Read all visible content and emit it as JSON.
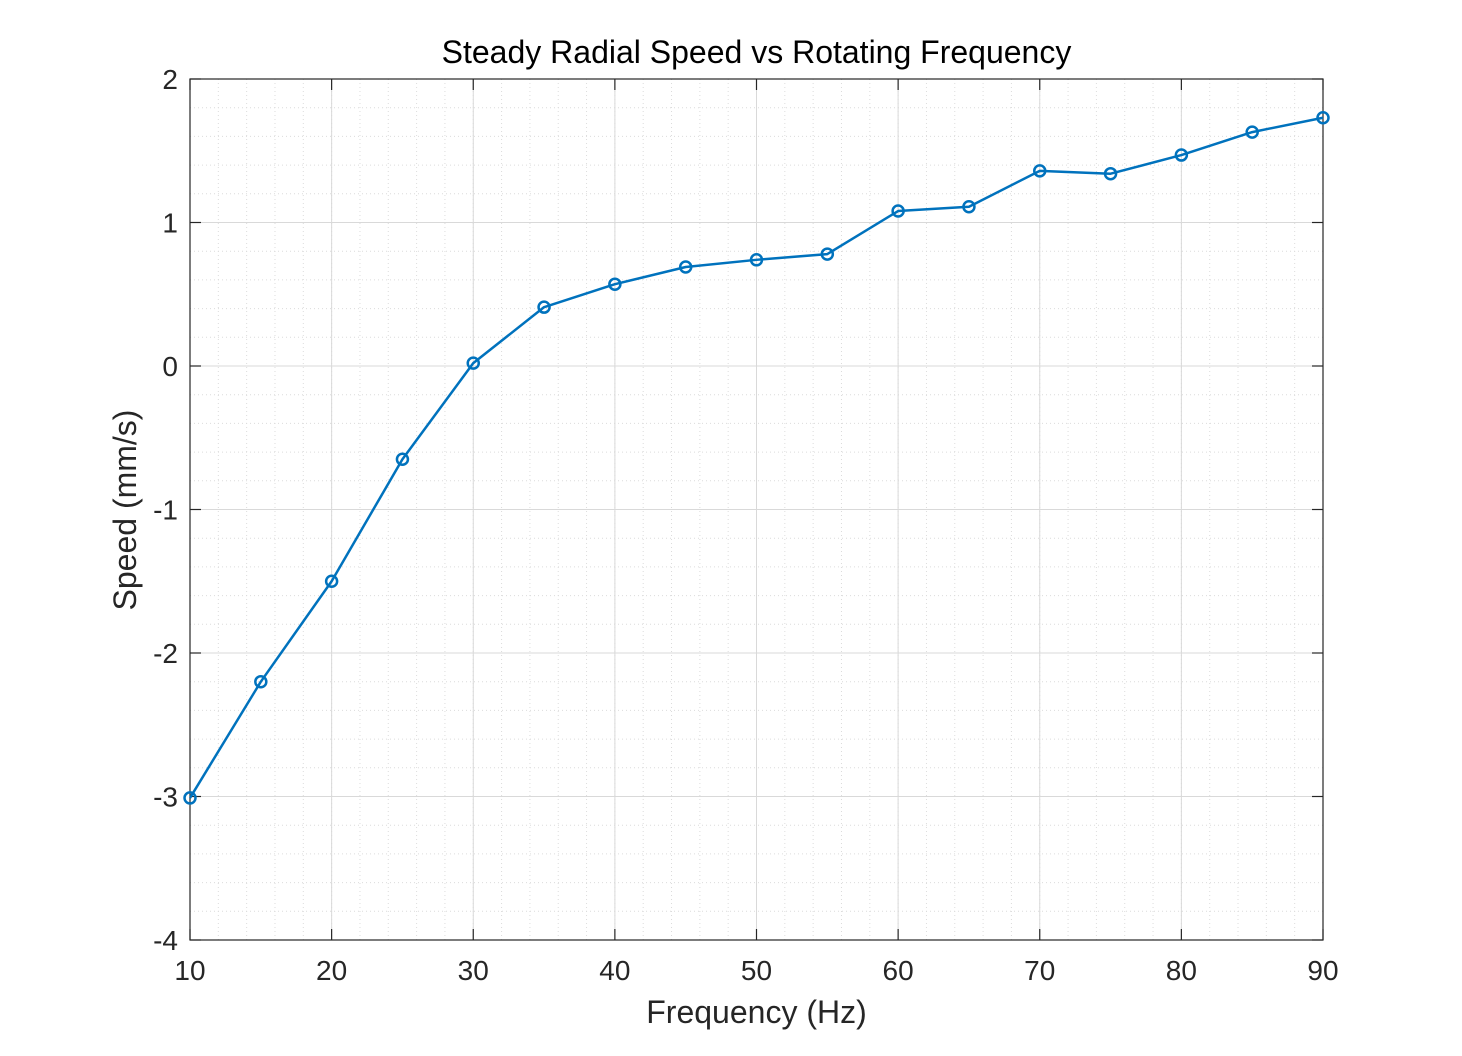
{
  "chart_data": {
    "type": "line",
    "title": "Steady Radial Speed vs Rotating Frequency",
    "xlabel": "Frequency (Hz)",
    "ylabel": "Speed (mm/s)",
    "xlim": [
      10,
      90
    ],
    "ylim": [
      -4,
      2
    ],
    "xticks": [
      10,
      20,
      30,
      40,
      50,
      60,
      70,
      80,
      90
    ],
    "yticks": [
      -4,
      -3,
      -2,
      -1,
      0,
      1,
      2
    ],
    "grid": true,
    "minor_grid": true,
    "marker": "circle",
    "series": [
      {
        "color": "#0072bd",
        "x": [
          10,
          15,
          20,
          25,
          30,
          35,
          40,
          45,
          50,
          55,
          60,
          65,
          70,
          75,
          80,
          85,
          90
        ],
        "y": [
          -3.01,
          -2.2,
          -1.5,
          -0.65,
          0.02,
          0.41,
          0.57,
          0.69,
          0.74,
          0.78,
          1.08,
          1.11,
          1.36,
          1.34,
          1.47,
          1.63,
          1.73
        ]
      }
    ]
  }
}
